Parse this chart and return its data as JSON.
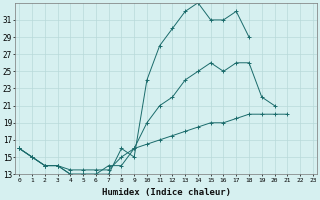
{
  "xlabel": "Humidex (Indice chaleur)",
  "x_values": [
    0,
    1,
    2,
    3,
    4,
    5,
    6,
    7,
    8,
    9,
    10,
    11,
    12,
    13,
    14,
    15,
    16,
    17,
    18,
    19,
    20,
    21,
    22,
    23
  ],
  "series1": [
    16,
    15,
    14,
    14,
    13,
    13,
    13,
    13,
    16,
    15,
    24,
    28,
    30,
    32,
    33,
    31,
    31,
    32,
    29,
    null,
    null,
    null,
    null,
    null
  ],
  "series2": [
    16,
    15,
    14,
    14,
    13,
    13,
    13,
    14,
    14,
    16,
    19,
    21,
    22,
    24,
    25,
    26,
    25,
    26,
    26,
    22,
    21,
    null,
    null,
    null
  ],
  "series3": [
    16,
    15,
    14,
    14,
    13.5,
    13.5,
    13.5,
    13.5,
    15,
    16,
    16.5,
    17,
    17.5,
    18,
    18.5,
    19,
    19,
    19.5,
    20,
    20,
    20,
    20,
    null,
    null
  ],
  "line_color": "#1a6b6b",
  "bg_color": "#d6f0f0",
  "grid_color": "#b8dada",
  "ylim": [
    13,
    33
  ],
  "yticks": [
    13,
    15,
    17,
    19,
    21,
    23,
    25,
    27,
    29,
    31
  ],
  "xlim": [
    -0.3,
    23.3
  ]
}
